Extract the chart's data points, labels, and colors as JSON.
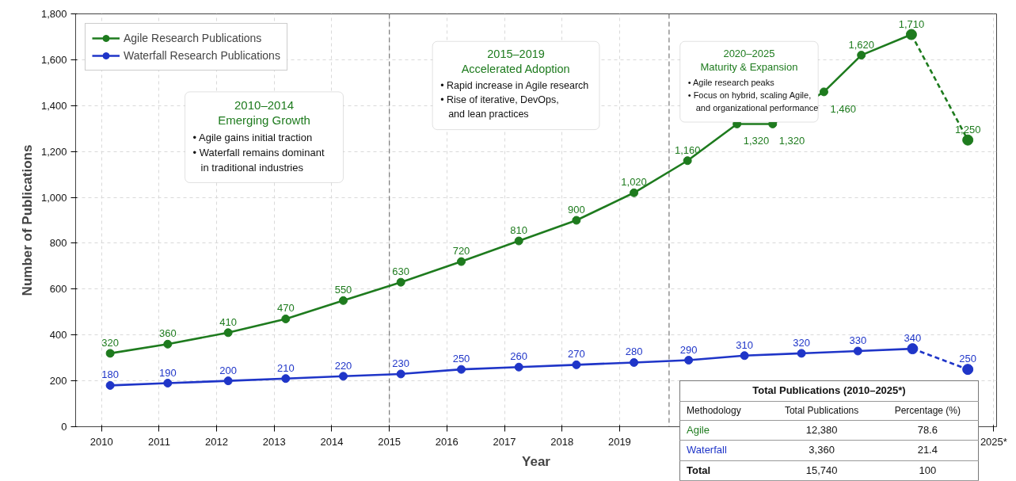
{
  "chart_data": {
    "type": "line",
    "xlabel": "Year",
    "ylabel": "Number of Publications",
    "xlim": [
      2009.55,
      2025.55
    ],
    "xticks": [
      2010,
      2011,
      2012,
      2013,
      2014,
      2015,
      2016,
      2017,
      2018,
      2019,
      {
        "value": 2025.5,
        "label": "2025*"
      }
    ],
    "ylim": [
      0,
      1800
    ],
    "yticks": [
      0,
      200,
      400,
      600,
      800,
      {
        "value": 1000,
        "label": "1,000"
      },
      {
        "value": 1200,
        "label": "1,200"
      },
      {
        "value": 1400,
        "label": "1,400"
      },
      {
        "value": 1600,
        "label": "1,600"
      },
      {
        "value": 1800,
        "label": "1,800"
      }
    ],
    "grid": true,
    "legend": "top left",
    "marker": "circle",
    "line_style": "solid",
    "series": [
      {
        "name": "Agile Research Publications",
        "color": "#1e7b1e",
        "x": [
          2010.15,
          2011.15,
          2012.2,
          2013.2,
          2014.2,
          2015.2,
          2016.25,
          2017.25,
          2018.25,
          2019.25,
          2020.18,
          2021.04,
          2021.66,
          2022.55,
          2023.2,
          2024.07
        ],
        "values": [
          320,
          360,
          410,
          470,
          550,
          630,
          720,
          810,
          900,
          1020,
          1160,
          1320,
          1320,
          1460,
          1620,
          1710
        ],
        "value_labels": [
          "320",
          "360",
          "410",
          "470",
          "550",
          "630",
          "720",
          "810",
          "900",
          "1,020",
          "1,160",
          "1,320",
          "1,320",
          "1,460",
          "1,620",
          "1,710"
        ]
      },
      {
        "color": "#1e7b1e",
        "line_style": "dashed",
        "x": [
          2024.07,
          2025.05
        ],
        "values": [
          1710,
          1250
        ],
        "value_labels": [
          null,
          "1,250"
        ]
      },
      {
        "name": "Waterfall Research Publications",
        "color": "#1f35c8",
        "x": [
          2010.15,
          2011.15,
          2012.2,
          2013.2,
          2014.2,
          2015.2,
          2016.25,
          2017.25,
          2018.25,
          2019.25,
          2020.2,
          2021.17,
          2022.16,
          2023.14,
          2024.09
        ],
        "values": [
          180,
          190,
          200,
          210,
          220,
          230,
          250,
          260,
          270,
          280,
          290,
          310,
          320,
          330,
          340
        ],
        "value_labels": [
          "180",
          "190",
          "200",
          "210",
          "220",
          "230",
          "250",
          "260",
          "270",
          "280",
          "290",
          "310",
          "320",
          "330",
          "340"
        ]
      },
      {
        "color": "#1f35c8",
        "line_style": "dashed",
        "x": [
          2024.09,
          2025.05
        ],
        "values": [
          340,
          250
        ],
        "value_labels": [
          null,
          "250"
        ]
      }
    ],
    "ref_lines": [
      {
        "axis": "x",
        "value": 2015,
        "color": "#808080",
        "line_style": "dashed"
      },
      {
        "axis": "x",
        "value": 2019.86,
        "color": "#808080",
        "line_style": "dashed"
      }
    ],
    "annotations": [
      "2010–2014\nEmerging Growth\n• Agile gains initial traction\n• Waterfall remains dominant\nin traditional industries",
      "2015–2019\nAccelerated Adoption\n• Rapid increase in Agile research\n• Rise of iterative, DevOps,\nand lean practices",
      "2020–2025\nMaturity & Expansion\n• Agile research peaks\n• Focus on hybrid, scaling Agile,\nand organizational performance",
      "Total Publications (2010–2025*)\nMethodology\tTotal Publications\tPercentage (%)\nAgile\t12,380\t78.6\nWaterfall\t3,360\t21.4\nTotal\t15,740\t100"
    ]
  }
}
